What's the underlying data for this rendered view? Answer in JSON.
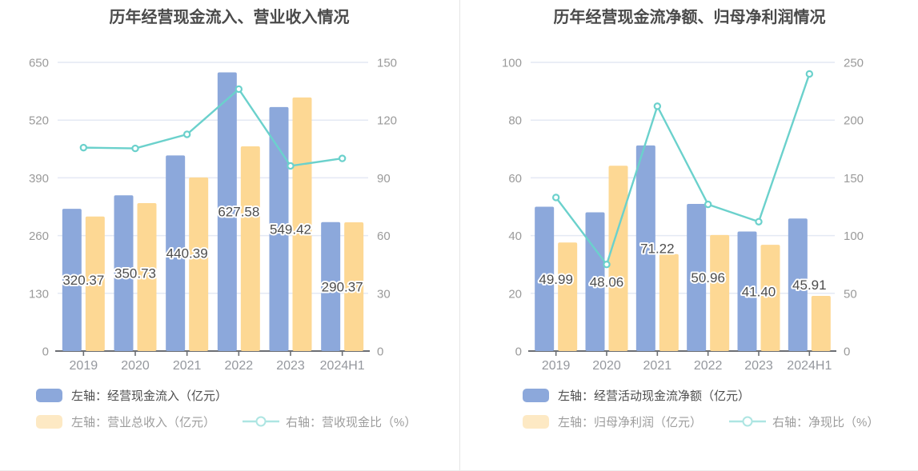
{
  "chart_data": [
    {
      "type": "bar+line",
      "title": "历年经营现金流入、营业收入情况",
      "categories": [
        "2019",
        "2020",
        "2021",
        "2022",
        "2023",
        "2024H1"
      ],
      "left_axis": {
        "min": 0,
        "max": 650,
        "ticks": [
          0,
          130,
          260,
          390,
          520,
          650
        ]
      },
      "right_axis": {
        "min": 0,
        "max": 150,
        "ticks": [
          0,
          30,
          60,
          90,
          120,
          150
        ]
      },
      "bar_series": [
        {
          "name": "左轴：经营现金流入（亿元）",
          "color": "#8CA8DB",
          "values": [
            320.37,
            350.73,
            440.39,
            627.58,
            549.42,
            290.37
          ],
          "data_labels": [
            "320.37",
            "350.73",
            "440.39",
            "627.58",
            "549.42",
            "290.37"
          ]
        },
        {
          "name": "左轴：营业总收入（亿元）",
          "color": "#FDD894",
          "values": [
            303,
            333,
            391,
            461,
            571,
            290
          ]
        }
      ],
      "line_series": {
        "name": "右轴：营收现金比（%）",
        "color": "#6BD1CC",
        "axis": "right",
        "values": [
          105.7,
          105.3,
          112.6,
          136.1,
          96.2,
          100.1
        ]
      },
      "grid": true,
      "legend_position": "bottom"
    },
    {
      "type": "bar+line",
      "title": "历年经营现金流净额、归母净利润情况",
      "categories": [
        "2019",
        "2020",
        "2021",
        "2022",
        "2023",
        "2024H1"
      ],
      "left_axis": {
        "min": 0,
        "max": 100,
        "ticks": [
          0,
          20,
          40,
          60,
          80,
          100
        ]
      },
      "right_axis": {
        "min": 0,
        "max": 250,
        "ticks": [
          0,
          50,
          100,
          150,
          200,
          250
        ]
      },
      "bar_series": [
        {
          "name": "左轴：经营活动现金流净额（亿元）",
          "color": "#8CA8DB",
          "values": [
            49.99,
            48.06,
            71.22,
            50.96,
            41.4,
            45.91
          ],
          "data_labels": [
            "49.99",
            "48.06",
            "71.22",
            "50.96",
            "41.40",
            "45.91"
          ]
        },
        {
          "name": "左轴：归母净利润（亿元）",
          "color": "#FDD894",
          "values": [
            37.6,
            64.2,
            33.6,
            40.2,
            36.8,
            19.1
          ]
        }
      ],
      "line_series": {
        "name": "右轴：净现比（%）",
        "color": "#6BD1CC",
        "axis": "right",
        "values": [
          133,
          75,
          212,
          127,
          112,
          240
        ]
      },
      "grid": true,
      "legend_position": "bottom"
    }
  ],
  "style_colors": {
    "bar_blue": "#8CA8DB",
    "bar_orange": "#FDD894",
    "line_teal": "#6BD1CC",
    "gridline": "#E4E9F4",
    "axis_line": "#6B6E73",
    "tick_label": "#9A9A9A",
    "title_text": "#4A4A4A",
    "value_label": "#4D4D4D"
  }
}
